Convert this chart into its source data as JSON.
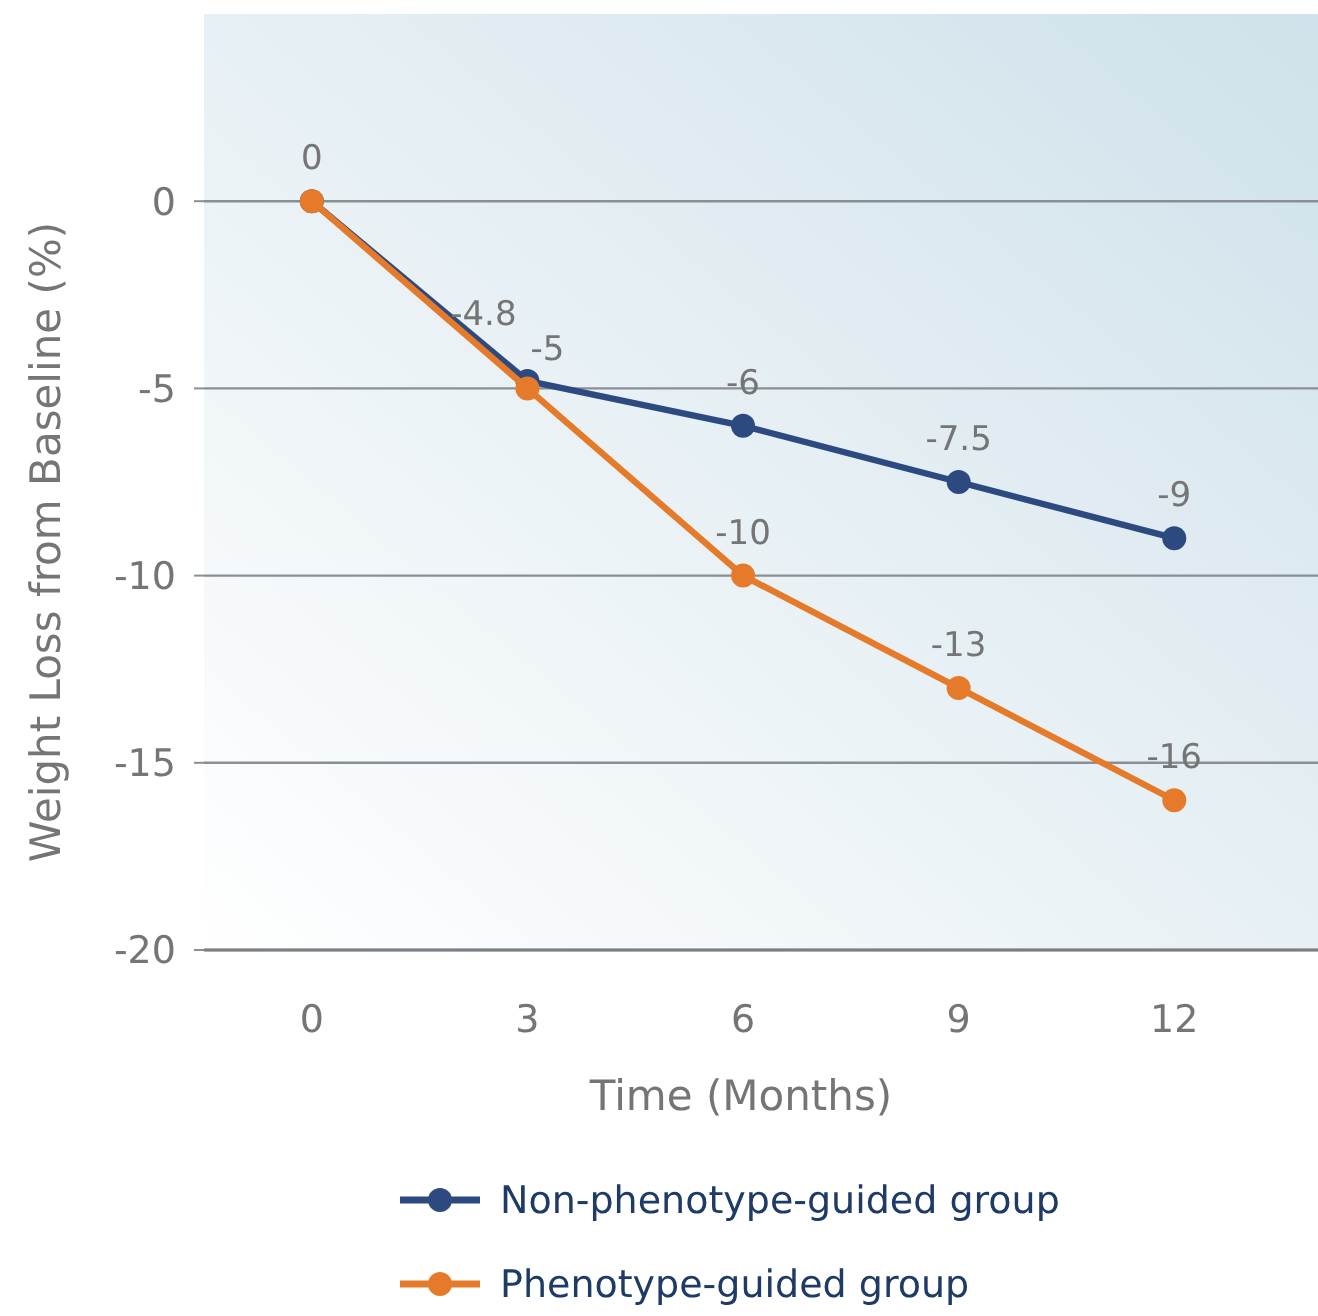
{
  "chart_data": {
    "type": "line",
    "xlabel": "Time (Months)",
    "ylabel": "Weight Loss from Baseline (%)",
    "x": [
      0,
      3,
      6,
      9,
      12
    ],
    "series": [
      {
        "name": "Non-phenotype-guided group",
        "color": "#2d4a80",
        "values": [
          0,
          -4.8,
          -6,
          -7.5,
          -9
        ],
        "value_labels": [
          "0",
          "-4.8",
          "-6",
          "-7.5",
          "-9"
        ]
      },
      {
        "name": "Phenotype-guided group",
        "color": "#e57b2a",
        "values": [
          0,
          -5,
          -10,
          -13,
          -16
        ],
        "value_labels": [
          null,
          "-5",
          "-10",
          "-13",
          "-16"
        ]
      }
    ],
    "xlim": [
      -1.5,
      14
    ],
    "xticks": [
      0,
      3,
      6,
      9,
      12
    ],
    "ylim": [
      -20,
      5
    ],
    "yticks": [
      -20,
      -15,
      -10,
      -5,
      0
    ],
    "grid": "y",
    "legend": "bottom",
    "marker": "circle",
    "line_style": "solid"
  }
}
